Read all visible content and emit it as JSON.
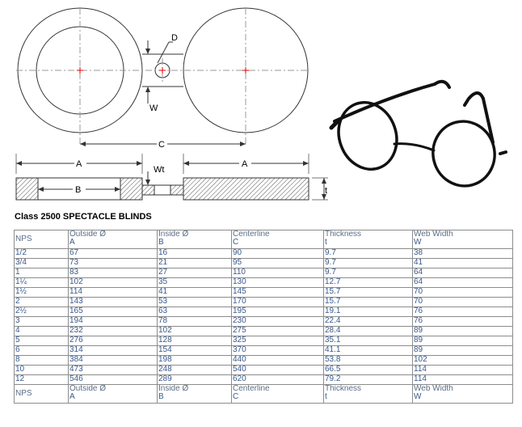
{
  "drawing": {
    "labels": {
      "D": "D",
      "W": "W",
      "C": "C",
      "A1": "A",
      "A2": "A",
      "B": "B",
      "Wt": "Wt",
      "t": "t"
    }
  },
  "title": "Class 2500 SPECTACLE BLINDS",
  "table": {
    "headers": [
      {
        "label": "NPS",
        "sym": ""
      },
      {
        "label": "Outside Ø",
        "sym": "A"
      },
      {
        "label": "Inside Ø",
        "sym": "B"
      },
      {
        "label": "Centerline",
        "sym": "C"
      },
      {
        "label": "Thickness",
        "sym": "t"
      },
      {
        "label": "Web Width",
        "sym": "W"
      }
    ],
    "rows": [
      [
        "1/2",
        "67",
        "16",
        "90",
        "9.7",
        "38"
      ],
      [
        "3/4",
        "73",
        "21",
        "95",
        "9.7",
        "41"
      ],
      [
        "1",
        "83",
        "27",
        "110",
        "9.7",
        "64"
      ],
      [
        "1¼",
        "102",
        "35",
        "130",
        "12.7",
        "64"
      ],
      [
        "1½",
        "114",
        "41",
        "145",
        "15.7",
        "70"
      ],
      [
        "2",
        "143",
        "53",
        "170",
        "15.7",
        "70"
      ],
      [
        "2½",
        "165",
        "63",
        "195",
        "19.1",
        "76"
      ],
      [
        "3",
        "194",
        "78",
        "230",
        "22.4",
        "76"
      ],
      [
        "4",
        "232",
        "102",
        "275",
        "28.4",
        "89"
      ],
      [
        "5",
        "276",
        "128",
        "325",
        "35.1",
        "89"
      ],
      [
        "6",
        "314",
        "154",
        "370",
        "41.1",
        "89"
      ],
      [
        "8",
        "384",
        "198",
        "440",
        "53.8",
        "102"
      ],
      [
        "10",
        "473",
        "248",
        "540",
        "66.5",
        "114"
      ],
      [
        "12",
        "546",
        "289",
        "620",
        "79.2",
        "114"
      ]
    ]
  }
}
